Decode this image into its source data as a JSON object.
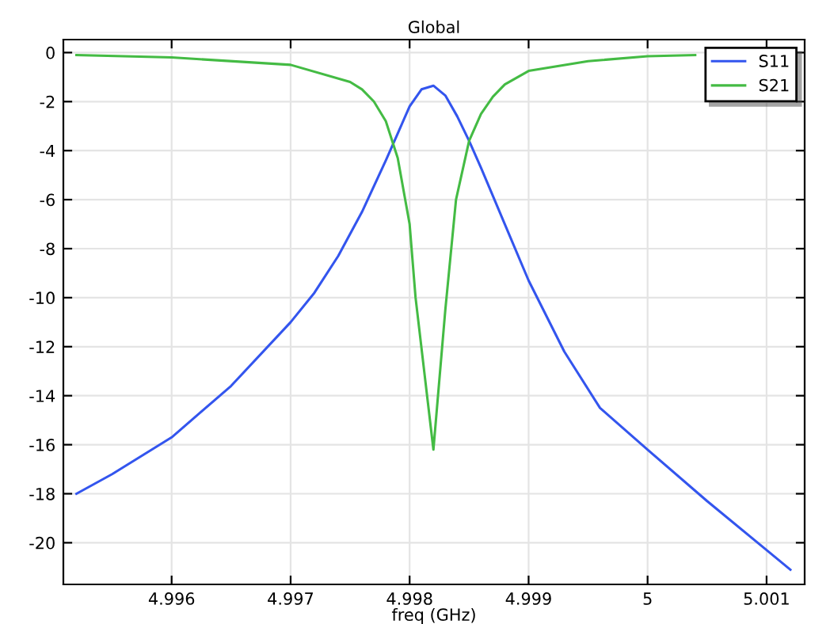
{
  "chart_data": {
    "type": "line",
    "title": "Global",
    "xlabel": "freq (GHz)",
    "xlim": [
      4.99509,
      5.00132
    ],
    "ylim": [
      -21.7,
      0.53
    ],
    "xticks": [
      4.996,
      4.997,
      4.998,
      4.999,
      5,
      5.001
    ],
    "yticks": [
      0,
      -2,
      -4,
      -6,
      -8,
      -10,
      -12,
      -14,
      -16,
      -18,
      -20
    ],
    "grid": true,
    "legend": "top right",
    "marker": "none",
    "line_style": "solid",
    "series": [
      {
        "name": "S11",
        "color": "#3355ee",
        "x": [
          4.9952,
          4.9955,
          4.996,
          4.9965,
          4.997,
          4.9972,
          4.9974,
          4.9976,
          4.9978,
          4.9979,
          4.998,
          4.9981,
          4.9982,
          4.9983,
          4.9984,
          4.9985,
          4.9986,
          4.9988,
          4.999,
          4.9993,
          4.9996,
          5.0,
          5.0005,
          5.001,
          5.0012
        ],
        "values": [
          -18.0,
          -17.2,
          -15.7,
          -13.6,
          -11.0,
          -9.8,
          -8.3,
          -6.5,
          -4.4,
          -3.3,
          -2.2,
          -1.5,
          -1.35,
          -1.75,
          -2.6,
          -3.6,
          -4.7,
          -7.0,
          -9.3,
          -12.2,
          -14.5,
          -16.2,
          -18.3,
          -20.3,
          -21.1
        ]
      },
      {
        "name": "S21",
        "color": "#44bb44",
        "x": [
          4.9952,
          4.996,
          4.997,
          4.9975,
          4.9976,
          4.9977,
          4.9978,
          4.9979,
          4.998,
          4.99805,
          4.9982,
          4.9983,
          4.99839,
          4.9985,
          4.9986,
          4.9987,
          4.9988,
          4.999,
          4.9995,
          5.0,
          5.0004
        ],
        "values": [
          -0.1,
          -0.2,
          -0.5,
          -1.2,
          -1.5,
          -2.0,
          -2.8,
          -4.3,
          -7.0,
          -10.0,
          -16.2,
          -10.5,
          -6.0,
          -3.6,
          -2.5,
          -1.8,
          -1.3,
          -0.75,
          -0.35,
          -0.15,
          -0.1
        ]
      }
    ]
  }
}
